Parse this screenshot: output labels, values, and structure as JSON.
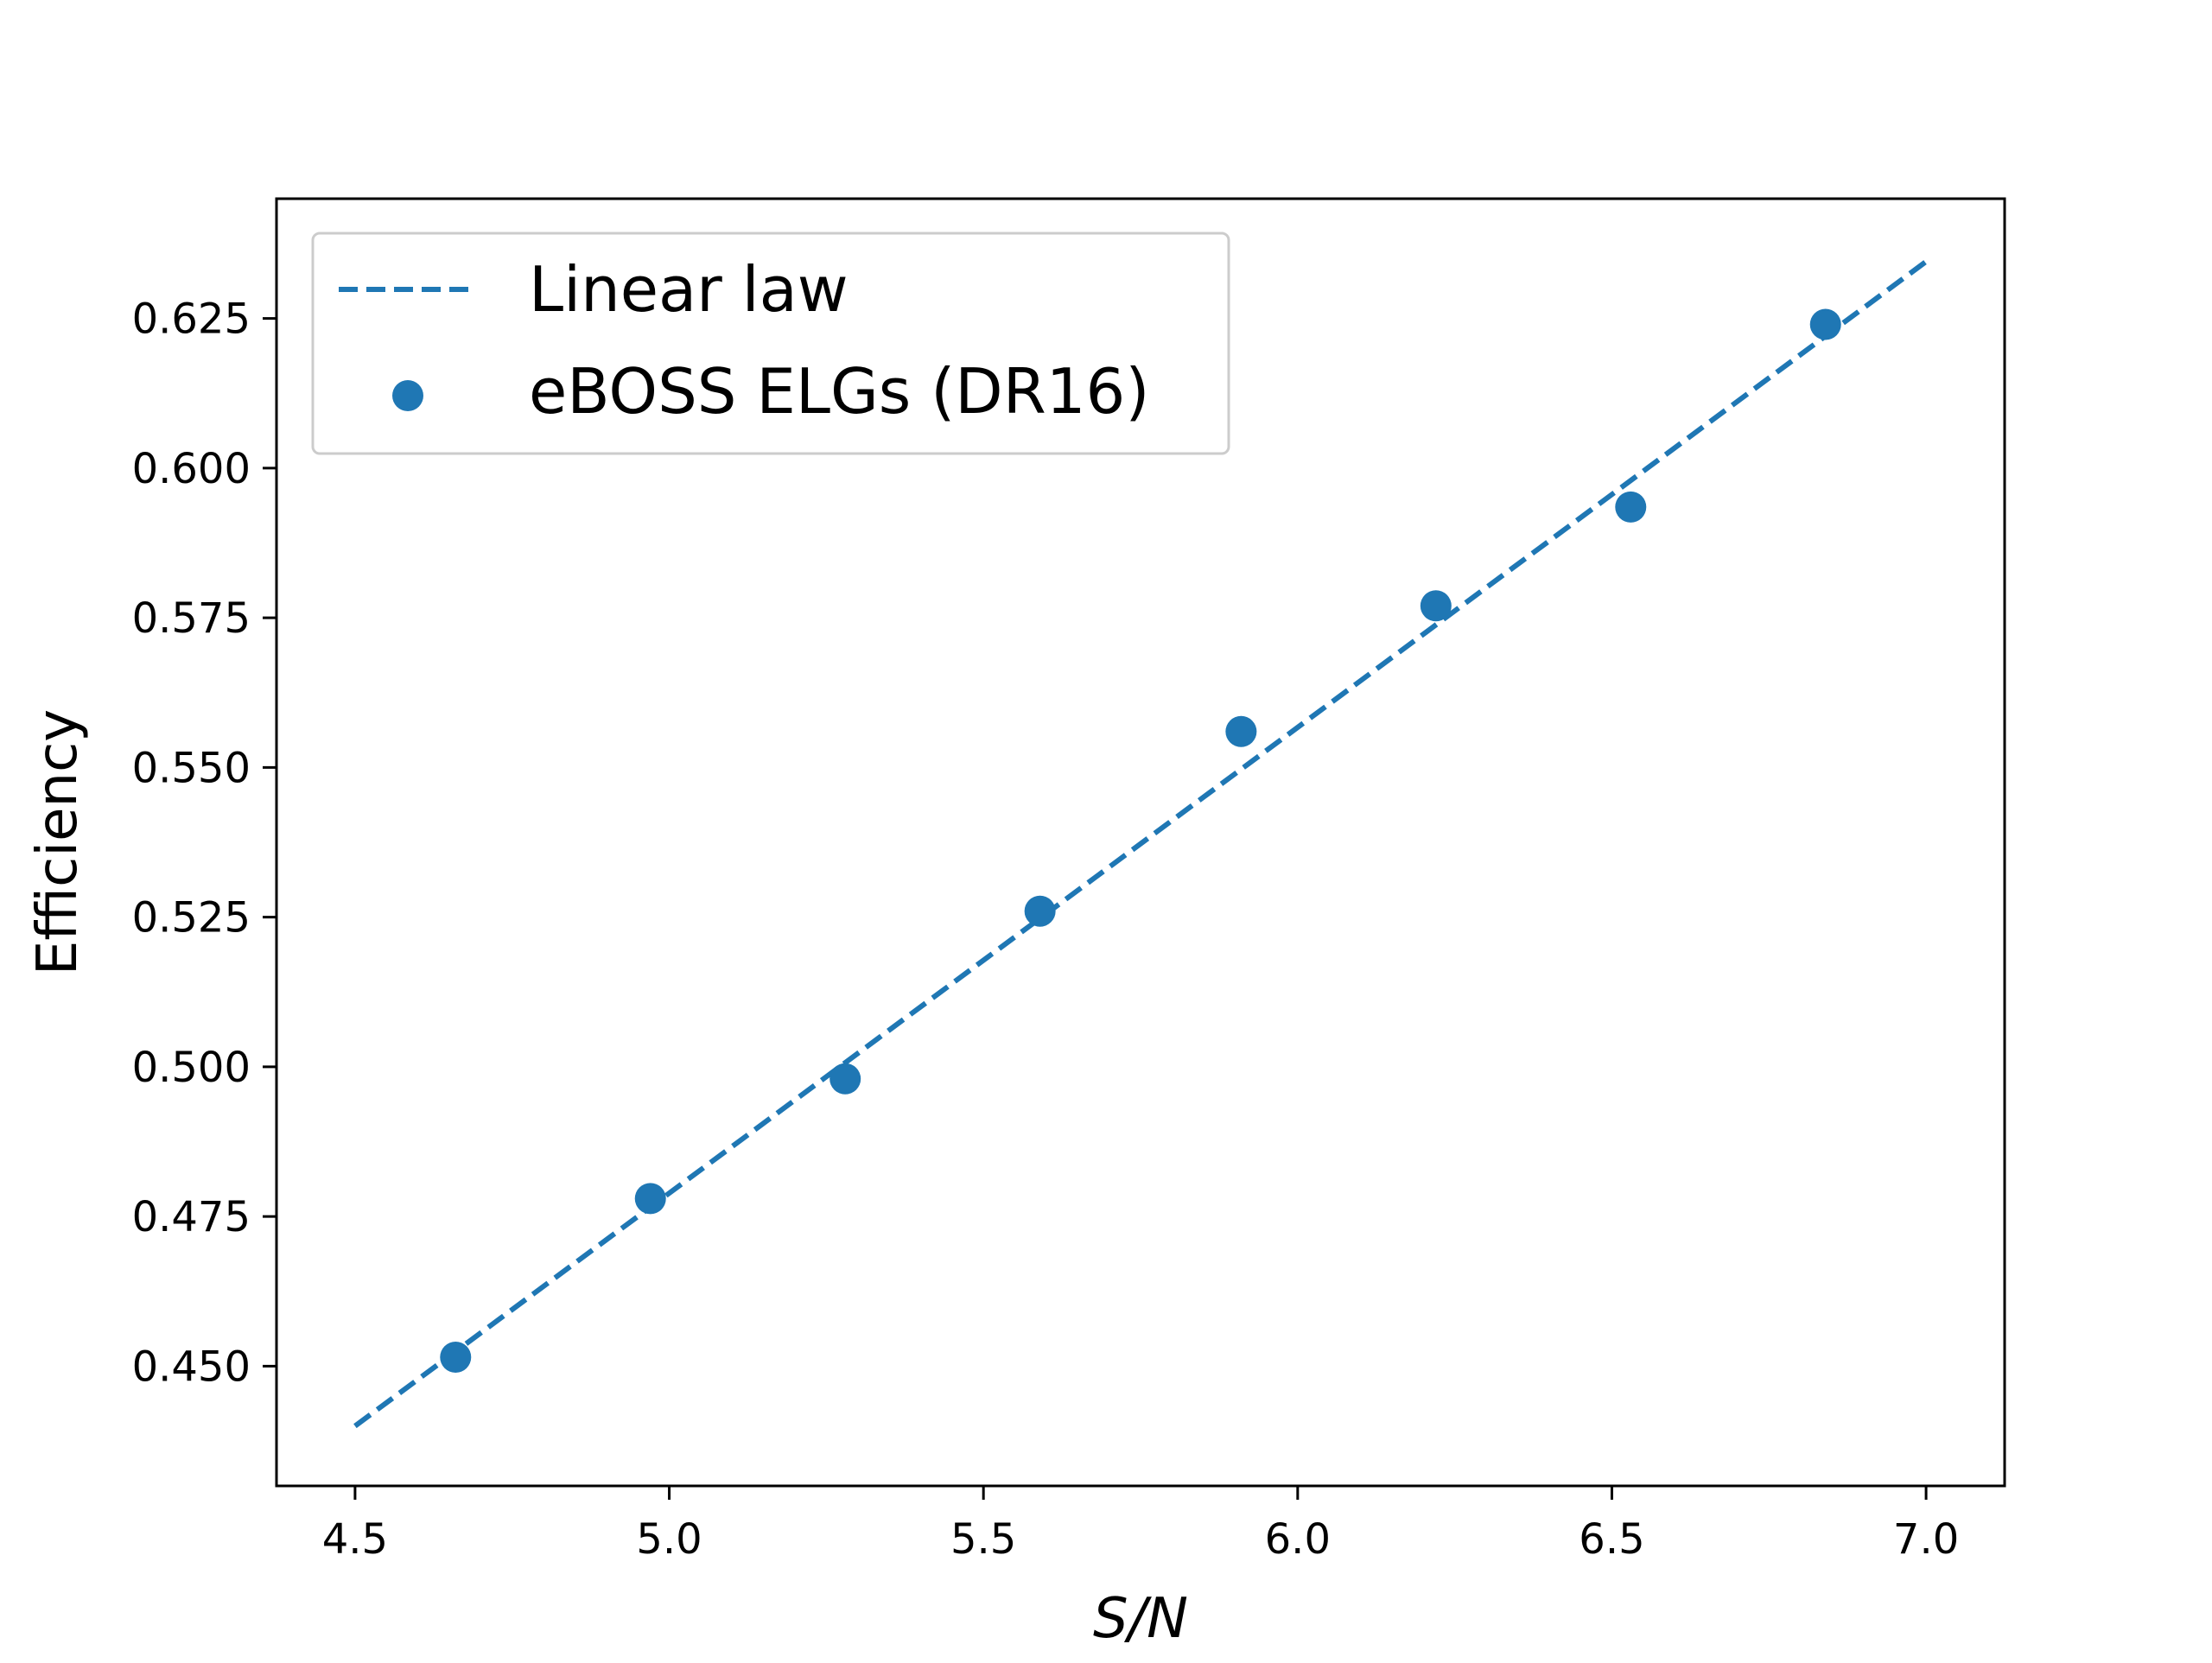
{
  "chart_data": {
    "type": "scatter",
    "title": "",
    "xlabel": "S/N",
    "ylabel": "Efficiency",
    "xlim": [
      4.375,
      7.125
    ],
    "ylim": [
      0.43,
      0.645
    ],
    "xticks": [
      "4.5",
      "5.0",
      "5.5",
      "6.0",
      "6.5",
      "7.0"
    ],
    "yticks": [
      "0.450",
      "0.475",
      "0.500",
      "0.525",
      "0.550",
      "0.575",
      "0.600",
      "0.625"
    ],
    "grid": false,
    "legend_position": "upper-left",
    "series": [
      {
        "name": "Linear law",
        "kind": "line",
        "style": "dashed",
        "color": "#1f77b4",
        "x": [
          4.5,
          7.0
        ],
        "y": [
          0.44,
          0.6345
        ]
      },
      {
        "name": "eBOSS ELGs (DR16)",
        "kind": "scatter",
        "color": "#1f77b4",
        "x": [
          4.66,
          4.97,
          5.28,
          5.59,
          5.91,
          6.22,
          6.53,
          6.84
        ],
        "y": [
          0.4515,
          0.478,
          0.498,
          0.526,
          0.556,
          0.577,
          0.5935,
          0.624
        ]
      }
    ]
  }
}
